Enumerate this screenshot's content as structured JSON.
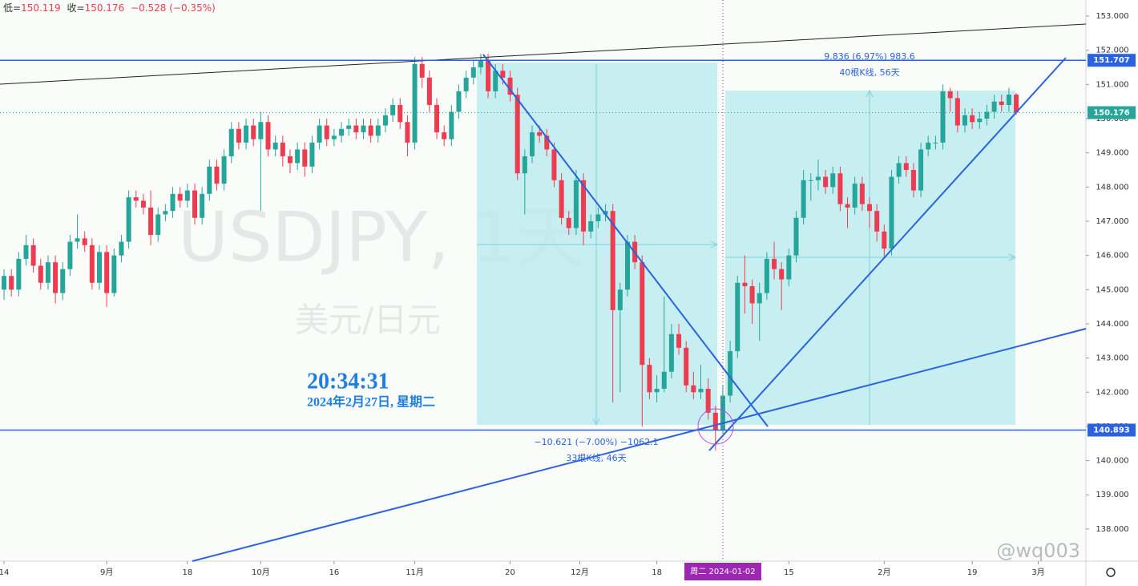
{
  "chart_data": {
    "type": "candlestick",
    "header": {
      "low_label": "低=",
      "close_label": "收=",
      "change": "−0.528 (−0.35%)"
    },
    "watermark": {
      "symbol": "USDJPY, 1天",
      "name": "美元/日元"
    },
    "clock": {
      "time": "20:34:31",
      "date": "2024年2月27日, 星期二"
    },
    "measures": [
      {
        "change": "−10.621 (−7.00%) −1062.1",
        "span": "33根K线, 46天"
      },
      {
        "change": "9.836 (6.97%) 983.6",
        "span": "40根K线, 56天"
      }
    ],
    "crosshair": {
      "x": 98,
      "label": "周二 2024-01-02"
    },
    "brand": "@wq003",
    "up_color": "#26a69a",
    "down_color": "#ef3b4f",
    "hline_color": "#2a62e0",
    "last_color": "#26a69a",
    "crosshair_color": "#9c27b0",
    "hlines": [
      151.707,
      140.893
    ],
    "last_price": 150.176,
    "xlim": [
      -0.55,
      147.5
    ],
    "ylim": [
      137.06,
      153.47
    ],
    "xticks": [
      {
        "value": 0,
        "label": "14"
      },
      {
        "value": 14,
        "label": "9月"
      },
      {
        "value": 25,
        "label": "18"
      },
      {
        "value": 35,
        "label": "10月"
      },
      {
        "value": 45,
        "label": "16"
      },
      {
        "value": 56,
        "label": "11月"
      },
      {
        "value": 69,
        "label": "20"
      },
      {
        "value": 78.5,
        "label": "12月"
      },
      {
        "value": 89,
        "label": "18"
      },
      {
        "value": 107,
        "label": "15"
      },
      {
        "value": 120,
        "label": "2月"
      },
      {
        "value": 132,
        "label": "19"
      },
      {
        "value": 141,
        "label": "3月"
      }
    ],
    "yticks": [
      {
        "value": 138,
        "label": "138.000"
      },
      {
        "value": 139,
        "label": "139.000"
      },
      {
        "value": 140,
        "label": "140.000"
      },
      {
        "value": 141,
        "label": "141.000"
      },
      {
        "value": 142,
        "label": "142.000"
      },
      {
        "value": 143,
        "label": "143.000"
      },
      {
        "value": 144,
        "label": "144.000"
      },
      {
        "value": 145,
        "label": "145.000"
      },
      {
        "value": 146,
        "label": "146.000"
      },
      {
        "value": 147,
        "label": "147.000"
      },
      {
        "value": 148,
        "label": "148.000"
      },
      {
        "value": 149,
        "label": "149.000"
      },
      {
        "value": 150,
        "label": "150.000"
      },
      {
        "value": 151,
        "label": "151.000"
      },
      {
        "value": 152,
        "label": "152.000"
      },
      {
        "value": 153,
        "label": "153.000"
      }
    ],
    "open": [
      145.0,
      145.4,
      145.0,
      145.9,
      146.3,
      145.7,
      145.2,
      145.8,
      144.9,
      145.6,
      146.4,
      146.5,
      146.3,
      145.2,
      146.1,
      144.9,
      146.0,
      146.4,
      147.7,
      147.6,
      147.4,
      146.6,
      147.2,
      147.3,
      147.8,
      147.6,
      147.9,
      147.1,
      147.8,
      148.6,
      148.1,
      148.9,
      149.7,
      149.3,
      149.8,
      149.4,
      149.9,
      149.1,
      149.3,
      148.9,
      148.7,
      149.1,
      148.6,
      149.3,
      149.8,
      149.4,
      149.5,
      149.7,
      149.8,
      149.6,
      149.8,
      149.5,
      149.8,
      150.1,
      150.4,
      149.9,
      149.3,
      151.6,
      151.2,
      150.4,
      149.6,
      149.4,
      150.2,
      150.8,
      151.2,
      151.5,
      151.7,
      150.8,
      151.4,
      151.2,
      150.7,
      148.4,
      148.9,
      149.6,
      149.5,
      149.1,
      148.2,
      147.1,
      146.8,
      148.2,
      146.7,
      147.0,
      147.2,
      147.3,
      144.4,
      145.0,
      146.4,
      145.8,
      142.8,
      142.0,
      142.1,
      142.6,
      143.7,
      143.3,
      142.2,
      142.0,
      142.1,
      141.4,
      140.9,
      141.9,
      143.2,
      145.2,
      145.1,
      144.6,
      144.9,
      145.9,
      145.6,
      145.3,
      146.0,
      147.1,
      148.2,
      148.2,
      148.3,
      148.0,
      148.4,
      147.5,
      147.4,
      148.1,
      147.5,
      147.3,
      146.7,
      146.2,
      148.3,
      148.7,
      148.5,
      147.9,
      149.1,
      149.3,
      149.3,
      150.8,
      150.6,
      149.8,
      150.1,
      149.9,
      150.0,
      150.2,
      150.5,
      150.4,
      150.704
    ],
    "high": [
      145.6,
      145.6,
      146.1,
      146.6,
      146.5,
      145.9,
      146.0,
      146.0,
      145.8,
      146.6,
      147.2,
      146.7,
      146.5,
      146.3,
      146.3,
      146.2,
      146.6,
      147.9,
      147.9,
      147.8,
      147.9,
      147.4,
      147.5,
      148.0,
      148.0,
      148.1,
      148.1,
      148.0,
      148.8,
      148.8,
      149.1,
      149.9,
      149.9,
      150.0,
      150.0,
      150.2,
      150.1,
      149.5,
      149.5,
      149.1,
      149.3,
      149.3,
      149.5,
      150.0,
      150.0,
      149.7,
      149.9,
      150.0,
      150.0,
      150.0,
      150.0,
      150.0,
      150.3,
      150.6,
      150.6,
      150.1,
      151.8,
      151.8,
      151.4,
      150.6,
      149.8,
      150.4,
      151.0,
      151.4,
      151.7,
      151.9,
      151.9,
      151.6,
      151.6,
      151.4,
      150.9,
      149.1,
      149.8,
      149.8,
      149.7,
      149.3,
      148.4,
      147.3,
      148.5,
      148.4,
      147.2,
      147.4,
      147.5,
      147.5,
      145.2,
      146.6,
      146.6,
      146.0,
      143.0,
      142.5,
      144.8,
      144.0,
      144.0,
      143.5,
      142.6,
      142.8,
      142.4,
      141.6,
      142.2,
      143.5,
      145.4,
      146.0,
      145.3,
      145.2,
      146.1,
      146.4,
      145.8,
      146.2,
      147.3,
      148.5,
      148.4,
      148.8,
      148.5,
      148.6,
      148.6,
      147.7,
      148.3,
      148.3,
      147.7,
      147.5,
      146.9,
      148.5,
      148.9,
      148.9,
      148.7,
      149.3,
      149.5,
      149.5,
      151.0,
      150.9,
      150.8,
      150.3,
      150.3,
      150.2,
      150.4,
      150.7,
      150.7,
      150.9,
      150.75
    ],
    "low": [
      144.7,
      144.8,
      144.8,
      145.7,
      145.5,
      145.0,
      145.0,
      144.6,
      144.7,
      145.4,
      146.2,
      146.1,
      145.0,
      145.0,
      144.5,
      144.8,
      145.8,
      146.2,
      147.4,
      147.2,
      146.3,
      146.4,
      147.0,
      147.1,
      147.4,
      147.4,
      146.9,
      146.9,
      147.6,
      147.9,
      147.9,
      148.7,
      149.1,
      149.1,
      149.2,
      147.3,
      148.9,
      148.9,
      148.6,
      148.4,
      148.5,
      148.3,
      148.4,
      149.1,
      149.2,
      149.2,
      149.3,
      149.5,
      149.4,
      149.4,
      149.3,
      149.3,
      149.6,
      149.9,
      149.7,
      148.9,
      149.1,
      150.9,
      150.2,
      149.4,
      149.2,
      149.2,
      150.0,
      150.6,
      151.0,
      151.3,
      150.6,
      150.6,
      151.0,
      150.5,
      148.2,
      147.2,
      148.7,
      149.3,
      148.9,
      148.0,
      146.9,
      146.6,
      146.6,
      146.3,
      146.5,
      146.8,
      147.0,
      141.7,
      142.0,
      144.8,
      145.6,
      141.0,
      141.8,
      141.7,
      142.0,
      142.4,
      143.1,
      142.0,
      141.8,
      141.8,
      141.2,
      140.3,
      140.8,
      141.7,
      143.0,
      144.3,
      144.0,
      143.5,
      144.7,
      145.3,
      144.4,
      145.1,
      145.8,
      146.9,
      147.6,
      147.9,
      147.8,
      147.8,
      147.3,
      146.8,
      147.2,
      147.3,
      146.8,
      146.4,
      145.9,
      146.0,
      148.1,
      148.3,
      147.7,
      147.7,
      148.9,
      149.1,
      149.1,
      150.2,
      149.6,
      149.6,
      149.7,
      149.7,
      149.8,
      150.0,
      150.2,
      150.2,
      150.119
    ],
    "close": [
      145.4,
      145.0,
      145.9,
      146.3,
      145.7,
      145.2,
      145.8,
      144.9,
      145.6,
      146.4,
      146.5,
      146.3,
      145.2,
      146.1,
      144.9,
      146.0,
      146.4,
      147.7,
      147.6,
      147.4,
      146.6,
      147.2,
      147.3,
      147.8,
      147.6,
      147.9,
      147.1,
      147.8,
      148.6,
      148.1,
      148.9,
      149.7,
      149.3,
      149.8,
      149.4,
      149.9,
      149.1,
      149.3,
      148.9,
      148.7,
      149.1,
      148.6,
      149.3,
      149.8,
      149.4,
      149.5,
      149.7,
      149.8,
      149.6,
      149.8,
      149.5,
      149.8,
      150.1,
      150.4,
      149.9,
      149.3,
      151.6,
      151.2,
      150.4,
      149.6,
      149.4,
      150.2,
      150.8,
      151.2,
      151.5,
      151.7,
      150.8,
      151.4,
      151.2,
      150.7,
      148.4,
      148.9,
      149.6,
      149.5,
      149.1,
      148.2,
      147.1,
      146.8,
      148.2,
      146.7,
      147.0,
      147.2,
      147.3,
      144.4,
      145.0,
      146.4,
      145.8,
      142.8,
      142.0,
      142.1,
      142.6,
      143.7,
      143.3,
      142.2,
      142.0,
      142.1,
      141.4,
      140.9,
      141.9,
      143.2,
      145.2,
      145.1,
      144.6,
      144.9,
      145.9,
      145.6,
      145.3,
      146.0,
      147.1,
      148.2,
      148.2,
      148.3,
      148.0,
      148.4,
      147.5,
      147.4,
      148.1,
      147.5,
      147.3,
      146.7,
      146.2,
      148.3,
      148.7,
      148.5,
      147.9,
      149.1,
      149.3,
      149.3,
      150.8,
      150.6,
      149.8,
      150.1,
      149.9,
      150.0,
      150.2,
      150.5,
      150.4,
      150.704,
      150.176
    ]
  }
}
